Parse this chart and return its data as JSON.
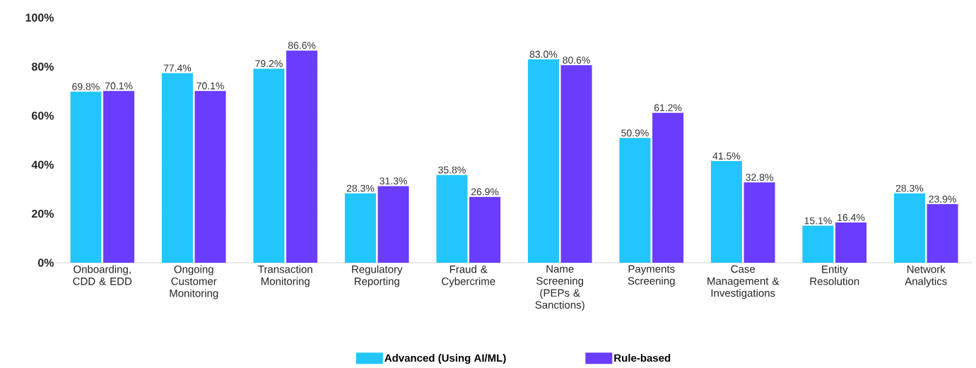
{
  "chart_data": {
    "type": "bar",
    "categories": [
      "Onboarding, CDD & EDD",
      "Ongoing Customer Monitoring",
      "Transaction Monitoring",
      "Regulatory Reporting",
      "Fraud & Cybercrime",
      "Name Screening (PEPs & Sanctions)",
      "Payments Screening",
      "Case Management & Investigations",
      "Entity Resolution",
      "Network Analytics"
    ],
    "series": [
      {
        "name": "Advanced (Using AI/ML)",
        "color": "#22c6fc",
        "values": [
          69.8,
          77.4,
          79.2,
          28.3,
          35.8,
          83.0,
          50.9,
          41.5,
          15.1,
          28.3
        ],
        "value_labels": [
          "69.8%",
          "77.4%",
          "79.2%",
          "28.3%",
          "35.8%",
          "83.0%",
          "50.9%",
          "41.5%",
          "15.1%",
          "28.3%"
        ]
      },
      {
        "name": "Rule-based",
        "color": "#6a3cfc",
        "values": [
          70.1,
          70.1,
          86.6,
          31.3,
          26.9,
          80.6,
          61.2,
          32.8,
          16.4,
          23.9
        ],
        "value_labels": [
          "70.1%",
          "70.1%",
          "86.6%",
          "31.3%",
          "26.9%",
          "80.6%",
          "61.2%",
          "32.8%",
          "16.4%",
          "23.9%"
        ]
      }
    ],
    "ylim": [
      0,
      100
    ],
    "yticks": [
      {
        "value": 0,
        "label": "0%"
      },
      {
        "value": 20,
        "label": "20%"
      },
      {
        "value": 40,
        "label": "40%"
      },
      {
        "value": 60,
        "label": "60%"
      },
      {
        "value": 80,
        "label": "80%"
      },
      {
        "value": 100,
        "label": "100%"
      }
    ],
    "grid": "y",
    "legend": "bottom"
  }
}
